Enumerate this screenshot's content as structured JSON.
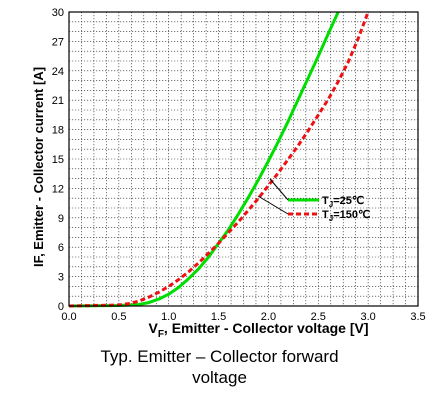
{
  "caption": {
    "line1": "Typ. Emitter – Collector forward",
    "line2": "voltage"
  },
  "chart_data": {
    "type": "line",
    "xlabel": "V_F, Emitter - Collector voltage [V]",
    "xlabel_parts": {
      "main": "V",
      "sub": "F",
      "rest": ", Emitter - Collector voltage [V]"
    },
    "ylabel": "IF, Emitter - Collector current [A]",
    "xlim": [
      0.0,
      3.5
    ],
    "ylim": [
      0,
      30
    ],
    "xticks": [
      "0.0",
      "0.5",
      "1.0",
      "1.5",
      "2.0",
      "2.5",
      "3.0",
      "3.5"
    ],
    "yticks": [
      "0",
      "3",
      "6",
      "9",
      "12",
      "15",
      "18",
      "21",
      "24",
      "27",
      "30"
    ],
    "x_minor_step": 0.125,
    "y_minor_step": 1,
    "grid": true,
    "legend_position": "inside lower-right",
    "series": [
      {
        "name": "TJ=25℃",
        "name_parts": {
          "main": "T",
          "sub": "J",
          "rest": "=25℃"
        },
        "color": "#00dd00",
        "style": "solid",
        "points": [
          [
            0.0,
            0
          ],
          [
            0.5,
            0.05
          ],
          [
            0.7,
            0.15
          ],
          [
            0.8,
            0.35
          ],
          [
            0.9,
            0.7
          ],
          [
            1.0,
            1.2
          ],
          [
            1.1,
            1.9
          ],
          [
            1.2,
            2.8
          ],
          [
            1.3,
            3.8
          ],
          [
            1.4,
            5.0
          ],
          [
            1.5,
            6.4
          ],
          [
            1.6,
            7.8
          ],
          [
            1.7,
            9.4
          ],
          [
            1.8,
            11.1
          ],
          [
            1.9,
            12.9
          ],
          [
            2.0,
            14.8
          ],
          [
            2.1,
            16.8
          ],
          [
            2.2,
            18.9
          ],
          [
            2.3,
            21.1
          ],
          [
            2.4,
            23.3
          ],
          [
            2.5,
            25.5
          ],
          [
            2.6,
            27.8
          ],
          [
            2.7,
            30.0
          ]
        ]
      },
      {
        "name": "TJ=150℃",
        "name_parts": {
          "main": "T",
          "sub": "J",
          "rest": "=150℃"
        },
        "color": "#ee1111",
        "style": "dashed",
        "points": [
          [
            0.0,
            0
          ],
          [
            0.5,
            0.1
          ],
          [
            0.6,
            0.25
          ],
          [
            0.7,
            0.5
          ],
          [
            0.8,
            0.9
          ],
          [
            0.9,
            1.4
          ],
          [
            1.0,
            2.0
          ],
          [
            1.1,
            2.7
          ],
          [
            1.2,
            3.5
          ],
          [
            1.3,
            4.4
          ],
          [
            1.4,
            5.4
          ],
          [
            1.5,
            6.4
          ],
          [
            1.6,
            7.5
          ],
          [
            1.7,
            8.6
          ],
          [
            1.8,
            9.8
          ],
          [
            1.9,
            11.0
          ],
          [
            2.0,
            12.3
          ],
          [
            2.1,
            13.6
          ],
          [
            2.2,
            15.0
          ],
          [
            2.3,
            16.4
          ],
          [
            2.4,
            17.9
          ],
          [
            2.5,
            19.5
          ],
          [
            2.6,
            21.1
          ],
          [
            2.7,
            22.9
          ],
          [
            2.8,
            24.9
          ],
          [
            2.9,
            27.3
          ],
          [
            3.0,
            30.0
          ]
        ]
      }
    ]
  }
}
